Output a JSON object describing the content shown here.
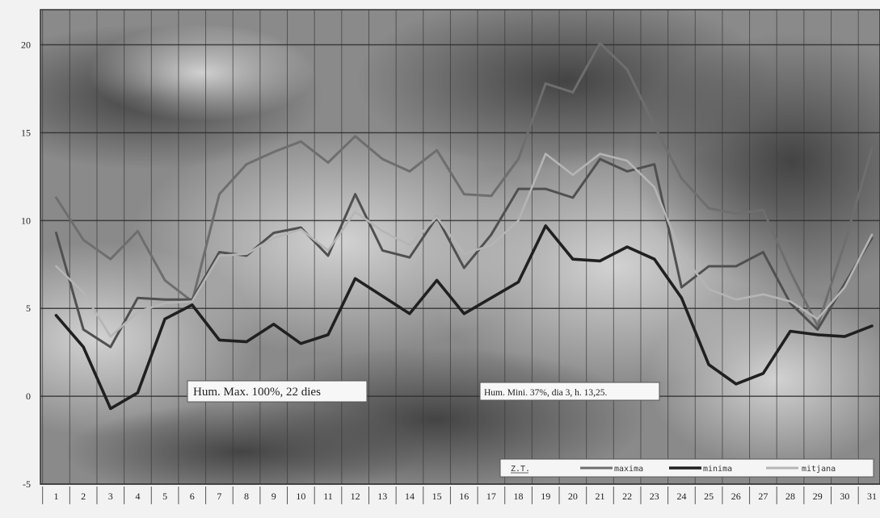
{
  "chart_data": {
    "type": "line",
    "title": "",
    "xlabel": "",
    "ylabel": "",
    "x": [
      1,
      2,
      3,
      4,
      5,
      6,
      7,
      8,
      9,
      10,
      11,
      12,
      13,
      14,
      15,
      16,
      17,
      18,
      19,
      20,
      21,
      22,
      23,
      24,
      25,
      26,
      27,
      28,
      29,
      30,
      31
    ],
    "xtick_labels": [
      "1",
      "2",
      "3",
      "4",
      "5",
      "6",
      "7",
      "8",
      "9",
      "10",
      "11",
      "12",
      "13",
      "14",
      "15",
      "16",
      "17",
      "18",
      "19",
      "20",
      "21",
      "22",
      "23",
      "24",
      "25",
      "26",
      "27",
      "28",
      "29",
      "30",
      "31"
    ],
    "ylim": [
      -5,
      22
    ],
    "yticks": [
      -5,
      0,
      5,
      10,
      15,
      20
    ],
    "ytick_labels": [
      "-5",
      "0",
      "5",
      "10",
      "15",
      "20"
    ],
    "grid": true,
    "legend_position": "bottom-right",
    "series": [
      {
        "name": "maxima",
        "color": "#6e6e6e",
        "values": [
          11.3,
          8.9,
          7.8,
          9.4,
          6.6,
          5.4,
          11.5,
          13.2,
          13.9,
          14.5,
          13.3,
          14.8,
          13.5,
          12.8,
          14.0,
          11.5,
          11.4,
          13.5,
          17.8,
          17.3,
          20.1,
          18.6,
          15.4,
          12.4,
          10.7,
          10.4,
          10.6,
          7.1,
          4.0,
          8.7,
          14.1
        ]
      },
      {
        "name": "minima",
        "color": "#202020",
        "values": [
          4.6,
          2.8,
          -0.7,
          0.2,
          4.4,
          5.2,
          3.2,
          3.1,
          4.1,
          3.0,
          3.5,
          6.7,
          5.7,
          4.7,
          6.6,
          4.7,
          5.6,
          6.5,
          9.7,
          7.8,
          7.7,
          8.5,
          7.8,
          5.6,
          1.8,
          0.7,
          1.3,
          3.7,
          3.5,
          3.4,
          4.0
        ]
      },
      {
        "name": "mitjana",
        "color": "#b5b5b5",
        "values": [
          7.4,
          5.9,
          3.4,
          4.8,
          5.3,
          5.4,
          8.0,
          8.1,
          9.0,
          9.5,
          8.3,
          10.5,
          9.4,
          8.6,
          10.2,
          8.1,
          8.6,
          10.0,
          13.8,
          12.6,
          13.8,
          13.4,
          11.9,
          8.1,
          6.1,
          5.5,
          5.8,
          5.4,
          4.4,
          6.2,
          9.2
        ]
      },
      {
        "name": "",
        "color": "#505050",
        "values": [
          9.3,
          3.8,
          2.8,
          5.6,
          5.5,
          5.5,
          8.2,
          8.0,
          9.3,
          9.6,
          8.0,
          11.5,
          8.3,
          7.9,
          10.2,
          7.3,
          9.2,
          11.8,
          11.8,
          11.3,
          13.5,
          12.8,
          13.2,
          6.2,
          7.4,
          7.4,
          8.2,
          5.3,
          3.8,
          6.4,
          9.0
        ]
      }
    ],
    "annotations": [
      {
        "text": "Hum. Max. 100%, 22 dies"
      },
      {
        "text": "Hum. Mini. 37%, dia 3, h. 13,25."
      }
    ],
    "legend_entries": [
      "Z.T.",
      "maxima",
      "minima",
      "mitjana"
    ]
  }
}
